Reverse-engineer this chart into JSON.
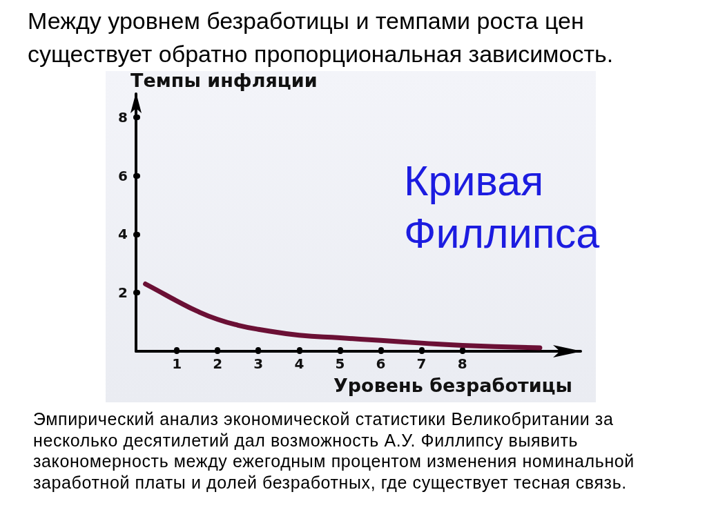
{
  "chart_data": {
    "type": "line",
    "title": "Между уровнем безработицы и темпами роста цен существует обратно пропорциональная зависимость.",
    "xlabel": "Уровень безработицы",
    "ylabel": "Темпы инфляции",
    "annotations": [
      "Кривая Филлипса",
      "Эмпирический анализ экономической статистики Великобритании за несколько десятилетий дал возможность А.У. Филлипсу выявить закономерность между ежегодным процентом изменения номинальной заработной платы и долей безработных, где существует тесная связь."
    ],
    "x": [
      0.23,
      0.5,
      1,
      1.5,
      2,
      2.5,
      3,
      4,
      5,
      6,
      7,
      8,
      9.9
    ],
    "series": [
      {
        "color": "#6b1035",
        "values": [
          2.3,
          2.1,
          1.72,
          1.37,
          1.09,
          0.89,
          0.75,
          0.55,
          0.46,
          0.37,
          0.28,
          0.2,
          0.12
        ]
      }
    ],
    "xlim": [
      0,
      10.9
    ],
    "ylim": [
      0,
      8.8
    ],
    "xticks": [
      1,
      2,
      3,
      4,
      5,
      6,
      7,
      8
    ],
    "yticks": [
      2,
      4,
      6,
      8
    ],
    "marker": "none",
    "line_style": "solid"
  }
}
